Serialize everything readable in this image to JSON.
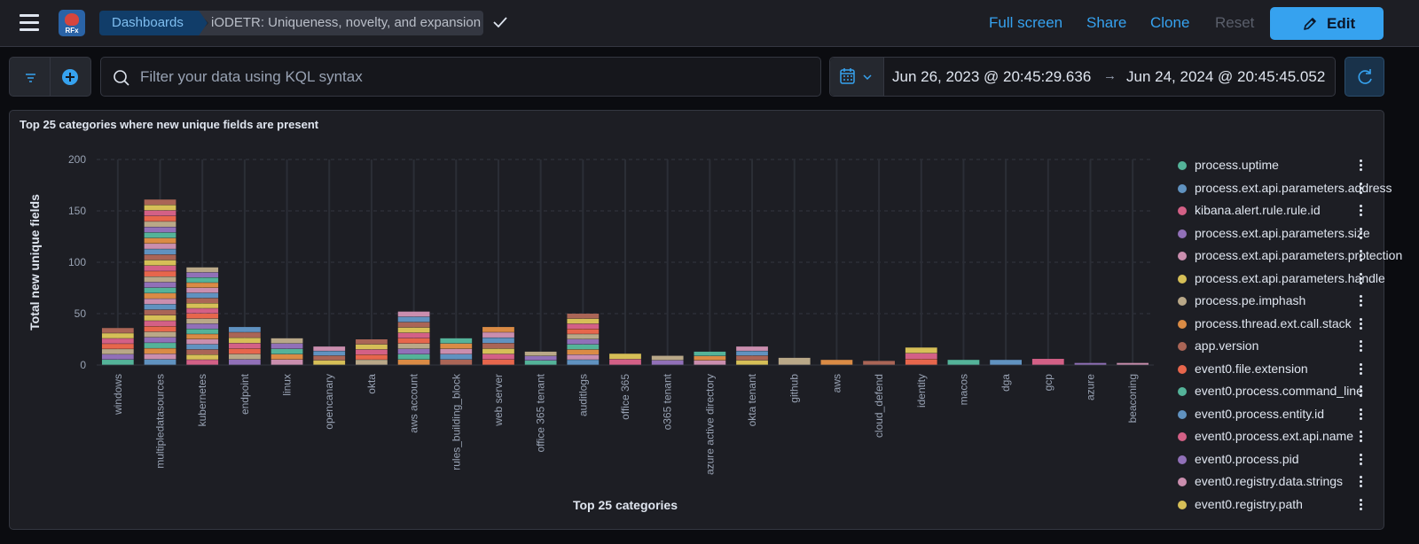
{
  "header": {
    "logo_text": "RFx",
    "breadcrumb_root": "Dashboards",
    "breadcrumb_current": "iODETR: Uniqueness, novelty, and expansion",
    "full_screen": "Full screen",
    "share": "Share",
    "clone": "Clone",
    "reset": "Reset",
    "edit": "Edit"
  },
  "query_bar": {
    "placeholder": "Filter your data using KQL syntax",
    "date_start": "Jun 26, 2023 @ 20:45:29.636",
    "date_arrow": "→",
    "date_end": "Jun 24, 2024 @ 20:45:45.052"
  },
  "panel": {
    "title": "Top 25 categories where new unique fields are present"
  },
  "legend": [
    {
      "label": "process.uptime",
      "color": "#54b399"
    },
    {
      "label": "process.ext.api.parameters.address",
      "color": "#6092c0"
    },
    {
      "label": "kibana.alert.rule.rule.id",
      "color": "#d36086"
    },
    {
      "label": "process.ext.api.parameters.size",
      "color": "#9170b8"
    },
    {
      "label": "process.ext.api.parameters.protection",
      "color": "#ca8eae"
    },
    {
      "label": "process.ext.api.parameters.handle",
      "color": "#d6bf57"
    },
    {
      "label": "process.pe.imphash",
      "color": "#b9a888"
    },
    {
      "label": "process.thread.ext.call.stack",
      "color": "#da8b45"
    },
    {
      "label": "app.version",
      "color": "#aa6556"
    },
    {
      "label": "event0.file.extension",
      "color": "#e7664c"
    },
    {
      "label": "event0.process.command_line",
      "color": "#54b399"
    },
    {
      "label": "event0.process.entity.id",
      "color": "#6092c0"
    },
    {
      "label": "event0.process.ext.api.name",
      "color": "#d36086"
    },
    {
      "label": "event0.process.pid",
      "color": "#9170b8"
    },
    {
      "label": "event0.registry.data.strings",
      "color": "#ca8eae"
    },
    {
      "label": "event0.registry.path",
      "color": "#d6bf57"
    }
  ],
  "chart_data": {
    "type": "bar",
    "stacked": true,
    "title": "Top 25 categories where new unique fields are present",
    "xlabel": "Top 25 categories",
    "ylabel": "Total new unique fields",
    "ylim": [
      0,
      200
    ],
    "yticks": [
      0,
      50,
      100,
      150,
      200
    ],
    "grid": true,
    "legend_position": "right",
    "categories": [
      "windows",
      "multipledatasources",
      "kubernetes",
      "endpoint",
      "linux",
      "opencanary",
      "okta",
      "aws account",
      "rules_building_block",
      "web server",
      "office 365 tenant",
      "auditlogs",
      "office 365",
      "o365 tenant",
      "azure active directory",
      "okta tenant",
      "github",
      "aws",
      "cloud_defend",
      "identity",
      "macos",
      "dga",
      "gcp",
      "azure",
      "beaconing"
    ],
    "totals": [
      36,
      161,
      95,
      37,
      26,
      18,
      25,
      52,
      26,
      37,
      13,
      50,
      11,
      9,
      13,
      18,
      7,
      5,
      4,
      17,
      5,
      5,
      6,
      2,
      2
    ]
  }
}
